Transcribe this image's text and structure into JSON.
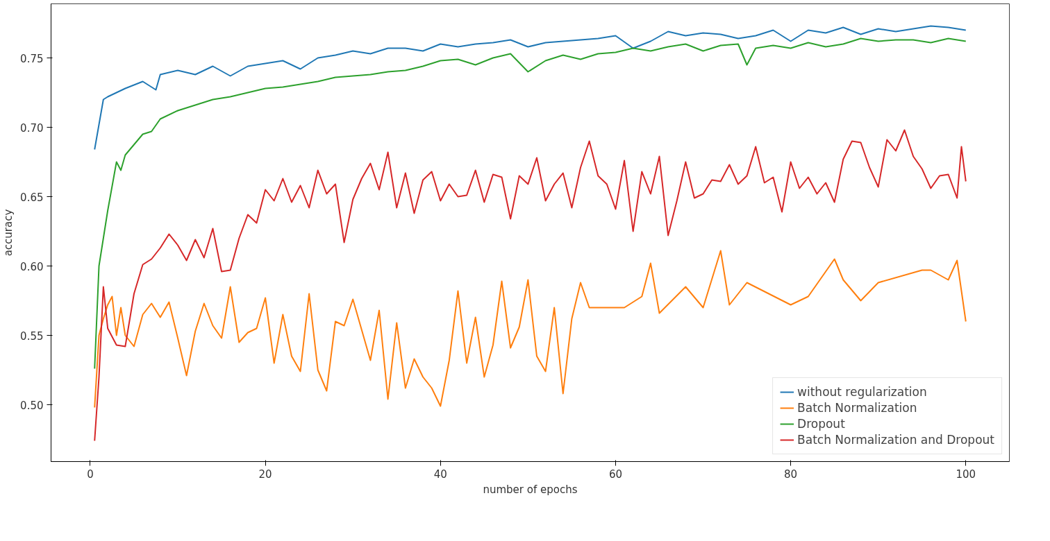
{
  "chart_data": {
    "type": "line",
    "xlabel": "number of epochs",
    "ylabel": "accuracy",
    "xlim": [
      -4.475,
      104.975
    ],
    "ylim": [
      0.459,
      0.789
    ],
    "xticks": [
      0,
      20,
      40,
      60,
      80,
      100
    ],
    "yticks": [
      {
        "value": 0.5,
        "label": "0.50"
      },
      0.55,
      {
        "value": 0.6,
        "label": "0.60"
      },
      0.65,
      {
        "value": 0.7,
        "label": "0.70"
      },
      0.75
    ],
    "grid": false,
    "legend": "bottom right",
    "line_style": "solid",
    "marker": "none",
    "series": [
      {
        "name": "without regularization",
        "color": "#1f77b4",
        "x": [
          0.5,
          1.5,
          2,
          4,
          6,
          7.5,
          8,
          10,
          12,
          14,
          16,
          18,
          20,
          22,
          24,
          26,
          28,
          30,
          32,
          34,
          36,
          38,
          40,
          42,
          44,
          46,
          48,
          50,
          52,
          54,
          56,
          58,
          60,
          62,
          64,
          66,
          68,
          70,
          72,
          74,
          76,
          78,
          80,
          82,
          84,
          86,
          88,
          90,
          92,
          94,
          96,
          98,
          100
        ],
        "values": [
          0.684,
          0.72,
          0.722,
          0.728,
          0.733,
          0.727,
          0.738,
          0.741,
          0.738,
          0.744,
          0.737,
          0.744,
          0.746,
          0.748,
          0.742,
          0.75,
          0.752,
          0.755,
          0.753,
          0.757,
          0.757,
          0.755,
          0.76,
          0.758,
          0.76,
          0.761,
          0.763,
          0.758,
          0.761,
          0.762,
          0.763,
          0.764,
          0.766,
          0.757,
          0.762,
          0.769,
          0.766,
          0.768,
          0.767,
          0.764,
          0.766,
          0.77,
          0.762,
          0.77,
          0.768,
          0.772,
          0.767,
          0.771,
          0.769,
          0.771,
          0.773,
          0.772,
          0.77
        ]
      },
      {
        "name": "Batch Normalization",
        "color": "#ff7f0e",
        "x": [
          0.5,
          1,
          1.5,
          2,
          2.5,
          3,
          3.5,
          4,
          5,
          6,
          7,
          8,
          9,
          10,
          11,
          12,
          13,
          14,
          15,
          16,
          17,
          18,
          19,
          20,
          21,
          22,
          23,
          24,
          25,
          26,
          27,
          28,
          29,
          30,
          31,
          32,
          33,
          34,
          35,
          36,
          37,
          38,
          39,
          40,
          41,
          42,
          43,
          44,
          45,
          46,
          47,
          48,
          49,
          50,
          51,
          52,
          53,
          54,
          55,
          56,
          57,
          61,
          63,
          64,
          65,
          68,
          70,
          72,
          73,
          75,
          80,
          82,
          85,
          86,
          88,
          90,
          95,
          96,
          98,
          99,
          100
        ],
        "values": [
          0.498,
          0.55,
          0.562,
          0.572,
          0.578,
          0.55,
          0.57,
          0.55,
          0.542,
          0.565,
          0.573,
          0.563,
          0.574,
          0.548,
          0.521,
          0.553,
          0.573,
          0.557,
          0.548,
          0.585,
          0.545,
          0.552,
          0.555,
          0.577,
          0.53,
          0.565,
          0.535,
          0.524,
          0.58,
          0.525,
          0.51,
          0.56,
          0.557,
          0.576,
          0.554,
          0.532,
          0.568,
          0.504,
          0.559,
          0.512,
          0.533,
          0.52,
          0.512,
          0.499,
          0.532,
          0.582,
          0.53,
          0.563,
          0.52,
          0.543,
          0.589,
          0.541,
          0.556,
          0.59,
          0.535,
          0.524,
          0.57,
          0.508,
          0.562,
          0.588,
          0.57,
          0.57,
          0.578,
          0.602,
          0.566,
          0.585,
          0.57,
          0.611,
          0.572,
          0.588,
          0.572,
          0.578,
          0.605,
          0.59,
          0.575,
          0.588,
          0.597,
          0.597,
          0.59,
          0.604,
          0.56
        ]
      },
      {
        "name": "Dropout",
        "color": "#2ca02c",
        "x": [
          0.5,
          1,
          2,
          3,
          3.5,
          4,
          6,
          7,
          8,
          10,
          12,
          14,
          16,
          18,
          20,
          22,
          24,
          26,
          28,
          30,
          32,
          34,
          36,
          38,
          40,
          42,
          44,
          46,
          48,
          50,
          52,
          54,
          56,
          58,
          60,
          62,
          64,
          66,
          68,
          70,
          72,
          74,
          75,
          76,
          78,
          80,
          82,
          84,
          86,
          88,
          90,
          92,
          94,
          96,
          98,
          100
        ],
        "values": [
          0.526,
          0.6,
          0.64,
          0.675,
          0.669,
          0.68,
          0.695,
          0.697,
          0.706,
          0.712,
          0.716,
          0.72,
          0.722,
          0.725,
          0.728,
          0.729,
          0.731,
          0.733,
          0.736,
          0.737,
          0.738,
          0.74,
          0.741,
          0.744,
          0.748,
          0.749,
          0.745,
          0.75,
          0.753,
          0.74,
          0.748,
          0.752,
          0.749,
          0.753,
          0.754,
          0.757,
          0.755,
          0.758,
          0.76,
          0.755,
          0.759,
          0.76,
          0.745,
          0.757,
          0.759,
          0.757,
          0.761,
          0.758,
          0.76,
          0.764,
          0.762,
          0.763,
          0.763,
          0.761,
          0.764,
          0.762
        ]
      },
      {
        "name": "Batch Normalization and Dropout",
        "color": "#d62728",
        "x": [
          0.5,
          1,
          1.5,
          2,
          3,
          4,
          5,
          6,
          7,
          8,
          9,
          10,
          11,
          12,
          13,
          14,
          15,
          16,
          17,
          18,
          19,
          20,
          21,
          22,
          23,
          24,
          25,
          26,
          27,
          28,
          29,
          30,
          31,
          32,
          33,
          34,
          35,
          36,
          37,
          38,
          39,
          40,
          41,
          42,
          43,
          44,
          45,
          46,
          47,
          48,
          49,
          50,
          51,
          52,
          53,
          54,
          55,
          56,
          57,
          58,
          59,
          60,
          61,
          62,
          63,
          64,
          65,
          66,
          67,
          68,
          69,
          70,
          71,
          72,
          73,
          74,
          75,
          76,
          77,
          78,
          79,
          80,
          81,
          82,
          83,
          84,
          85,
          86,
          87,
          88,
          89,
          90,
          91,
          92,
          93,
          94,
          95,
          96,
          97,
          98,
          99,
          99.5,
          100
        ],
        "values": [
          0.474,
          0.52,
          0.585,
          0.555,
          0.543,
          0.542,
          0.58,
          0.601,
          0.605,
          0.613,
          0.623,
          0.615,
          0.604,
          0.619,
          0.606,
          0.627,
          0.596,
          0.597,
          0.62,
          0.637,
          0.631,
          0.655,
          0.647,
          0.663,
          0.646,
          0.658,
          0.642,
          0.669,
          0.652,
          0.659,
          0.617,
          0.648,
          0.663,
          0.674,
          0.655,
          0.682,
          0.642,
          0.667,
          0.638,
          0.662,
          0.668,
          0.647,
          0.659,
          0.65,
          0.651,
          0.669,
          0.646,
          0.666,
          0.664,
          0.634,
          0.665,
          0.659,
          0.678,
          0.647,
          0.659,
          0.667,
          0.642,
          0.671,
          0.69,
          0.665,
          0.659,
          0.641,
          0.676,
          0.625,
          0.668,
          0.652,
          0.679,
          0.622,
          0.647,
          0.675,
          0.649,
          0.652,
          0.662,
          0.661,
          0.673,
          0.659,
          0.665,
          0.686,
          0.66,
          0.664,
          0.639,
          0.675,
          0.656,
          0.664,
          0.652,
          0.66,
          0.646,
          0.677,
          0.69,
          0.689,
          0.671,
          0.657,
          0.691,
          0.683,
          0.698,
          0.679,
          0.67,
          0.656,
          0.665,
          0.666,
          0.649,
          0.686,
          0.661
        ]
      }
    ]
  }
}
